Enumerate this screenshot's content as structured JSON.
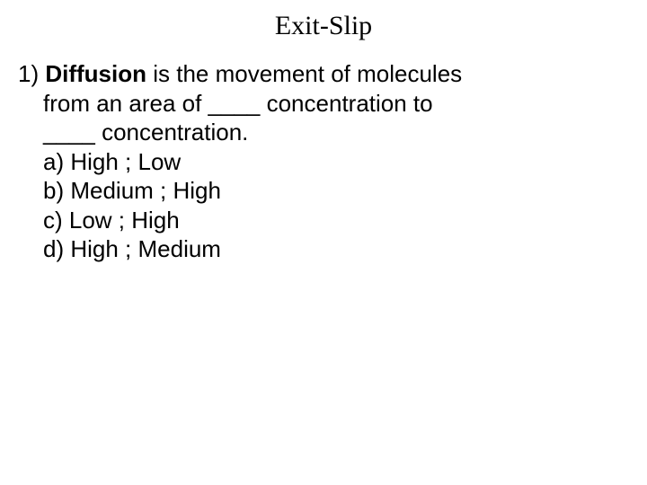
{
  "title": "Exit-Slip",
  "question": {
    "number": "1)",
    "term": "Diffusion",
    "line1_after": " is the movement of molecules",
    "line2": "from an area of ____ concentration to",
    "line3": "____ concentration.",
    "options": {
      "a": "a) High ; Low",
      "b": "b) Medium ; High",
      "c": "c) Low ; High",
      "d": "d) High ; Medium"
    }
  },
  "colors": {
    "background": "#ffffff",
    "text": "#000000"
  },
  "fonts": {
    "title_family": "Garamond, serif",
    "title_size": 30,
    "body_family": "Arial, sans-serif",
    "body_size": 26
  }
}
